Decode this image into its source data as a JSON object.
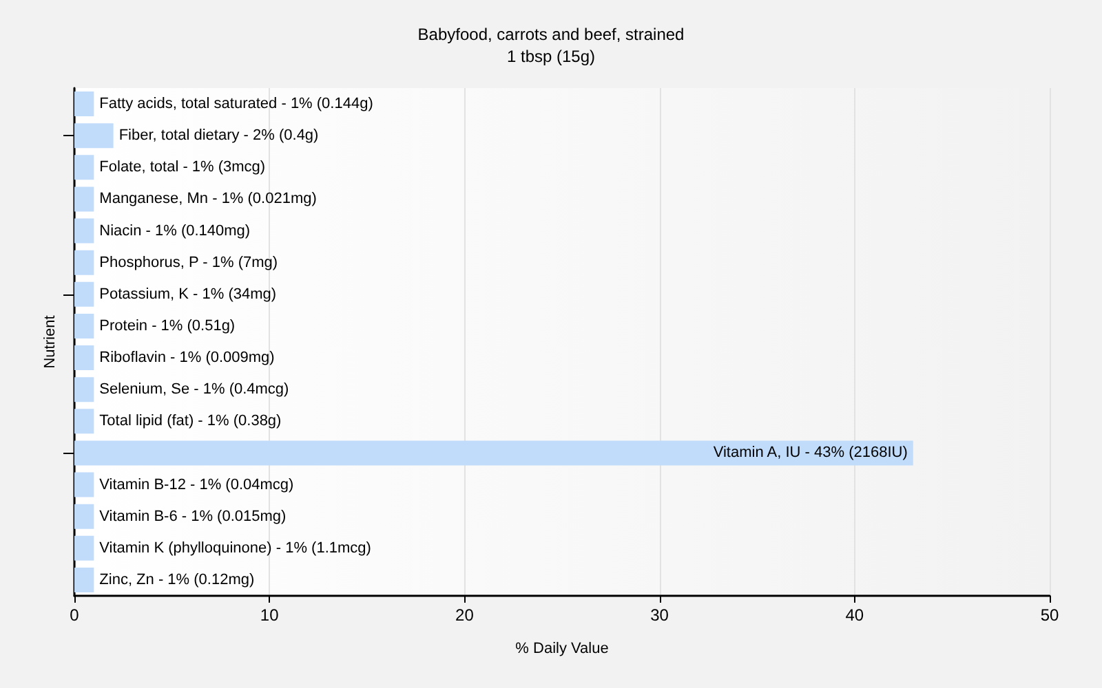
{
  "chart_data": {
    "type": "bar",
    "orientation": "horizontal",
    "title": "Babyfood, carrots and beef, strained",
    "subtitle": "1 tbsp (15g)",
    "xlabel": "% Daily Value",
    "ylabel": "Nutrient",
    "categories": [
      "Fatty acids, total saturated - 1% (0.144g)",
      "Fiber, total dietary - 2% (0.4g)",
      "Folate, total - 1% (3mcg)",
      "Manganese, Mn - 1% (0.021mg)",
      "Niacin - 1% (0.140mg)",
      "Phosphorus, P - 1% (7mg)",
      "Potassium, K - 1% (34mg)",
      "Protein - 1% (0.51g)",
      "Riboflavin - 1% (0.009mg)",
      "Selenium, Se - 1% (0.4mcg)",
      "Total lipid (fat) - 1% (0.38g)",
      "Vitamin A, IU - 43% (2168IU)",
      "Vitamin B-12 - 1% (0.04mcg)",
      "Vitamin B-6 - 1% (0.015mg)",
      "Vitamin K (phylloquinone) - 1% (1.1mcg)",
      "Zinc, Zn - 1% (0.12mg)"
    ],
    "values": [
      1,
      2,
      1,
      1,
      1,
      1,
      1,
      1,
      1,
      1,
      1,
      43,
      1,
      1,
      1,
      1
    ],
    "color": "#c0dcfa",
    "xlim": [
      0,
      50
    ],
    "xticks": [
      0,
      10,
      20,
      30,
      40,
      50
    ],
    "grid": "x",
    "tick_labels": "x"
  }
}
